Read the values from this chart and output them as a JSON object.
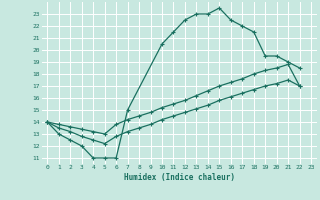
{
  "xlabel": "Humidex (Indice chaleur)",
  "bg_color": "#c8e8e0",
  "grid_color": "#ffffff",
  "line_color": "#1a7060",
  "xlim": [
    -0.5,
    23.5
  ],
  "ylim": [
    10.5,
    24.0
  ],
  "xticks": [
    0,
    1,
    2,
    3,
    4,
    5,
    6,
    7,
    8,
    9,
    10,
    11,
    12,
    13,
    14,
    15,
    16,
    17,
    18,
    19,
    20,
    21,
    22,
    23
  ],
  "yticks": [
    11,
    12,
    13,
    14,
    15,
    16,
    17,
    18,
    19,
    20,
    21,
    22,
    23
  ],
  "curve1_x": [
    0,
    1,
    2,
    3,
    4,
    5,
    6,
    7,
    10,
    11,
    12,
    13,
    14,
    15,
    16,
    17,
    18,
    19,
    20,
    21,
    22
  ],
  "curve1_y": [
    14,
    13,
    12.5,
    12,
    11,
    11,
    11,
    15,
    20.5,
    21.5,
    22.5,
    23,
    23,
    23.5,
    22.5,
    22,
    21.5,
    19.5,
    19.5,
    19,
    18.5
  ],
  "curve2_x": [
    0,
    1,
    2,
    3,
    4,
    5,
    6,
    7,
    8,
    9,
    10,
    11,
    12,
    13,
    14,
    15,
    16,
    17,
    18,
    19,
    20,
    21,
    22
  ],
  "curve2_y": [
    14,
    13.8,
    13.6,
    13.4,
    13.2,
    13.0,
    13.8,
    14.2,
    14.5,
    14.8,
    15.2,
    15.5,
    15.8,
    16.2,
    16.6,
    17.0,
    17.3,
    17.6,
    18.0,
    18.3,
    18.5,
    18.8,
    17.0
  ],
  "curve3_x": [
    0,
    1,
    2,
    3,
    4,
    5,
    6,
    7,
    8,
    9,
    10,
    11,
    12,
    13,
    14,
    15,
    16,
    17,
    18,
    19,
    20,
    21,
    22
  ],
  "curve3_y": [
    14,
    13.5,
    13.2,
    12.8,
    12.5,
    12.2,
    12.8,
    13.2,
    13.5,
    13.8,
    14.2,
    14.5,
    14.8,
    15.1,
    15.4,
    15.8,
    16.1,
    16.4,
    16.7,
    17.0,
    17.2,
    17.5,
    17.0
  ]
}
